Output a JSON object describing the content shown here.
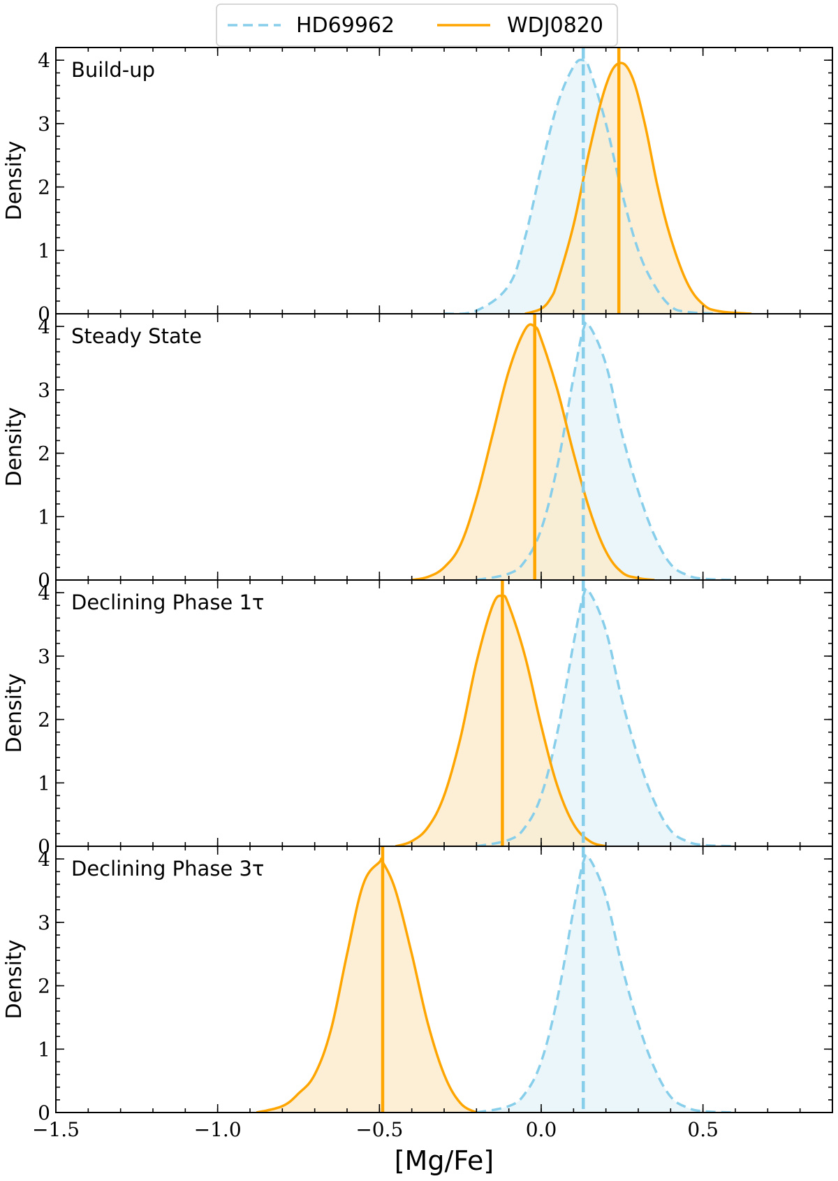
{
  "chart_data": {
    "type": "area",
    "xlabel": "[Mg/Fe]",
    "ylabel": "Density",
    "xlim": [
      -1.5,
      0.9
    ],
    "ylim": [
      0,
      4.2
    ],
    "xticks": [
      -1.5,
      -1.0,
      -0.5,
      0.0,
      0.5
    ],
    "xtick_labels": [
      "−1.5",
      "−1.0",
      "−0.5",
      "0.0",
      "0.5"
    ],
    "yticks": [
      0,
      1,
      2,
      3,
      4
    ],
    "ytick_labels": [
      "0",
      "1",
      "2",
      "3",
      "4"
    ],
    "legend": {
      "placement": "top-center",
      "entries": [
        {
          "label": "HD69962",
          "style": "dashed",
          "color": "#87ceeb"
        },
        {
          "label": "WDJ0820",
          "style": "solid",
          "color": "#ffa500"
        }
      ]
    },
    "colors": {
      "HD69962_line": "#87ceeb",
      "HD69962_fill": "#e4f3fa",
      "WDJ0820_line": "#ffa500",
      "WDJ0820_fill": "#fce9c8"
    },
    "panels": [
      {
        "label": "Build-up",
        "series": [
          {
            "name": "HD69962",
            "peak": 4.0,
            "median": 0.13,
            "x": [
              -0.3,
              -0.2,
              -0.1,
              -0.05,
              0.0,
              0.05,
              0.1,
              0.13,
              0.15,
              0.2,
              0.25,
              0.3,
              0.35,
              0.4,
              0.45,
              0.55
            ],
            "y": [
              0.0,
              0.05,
              0.45,
              1.2,
              2.3,
              3.3,
              3.9,
              4.0,
              3.85,
              3.0,
              1.9,
              1.0,
              0.45,
              0.12,
              0.03,
              0.0
            ]
          },
          {
            "name": "WDJ0820",
            "peak": 3.95,
            "median": 0.24,
            "x": [
              -0.05,
              0.0,
              0.03,
              0.05,
              0.1,
              0.15,
              0.2,
              0.24,
              0.28,
              0.32,
              0.36,
              0.4,
              0.45,
              0.5,
              0.55,
              0.65
            ],
            "y": [
              0.0,
              0.08,
              0.25,
              0.5,
              1.4,
              2.6,
              3.6,
              3.95,
              3.75,
              3.0,
              2.0,
              1.2,
              0.5,
              0.15,
              0.04,
              0.0
            ]
          }
        ]
      },
      {
        "label": "Steady State",
        "series": [
          {
            "name": "HD69962",
            "peak": 4.0,
            "median": 0.13,
            "x": [
              -0.2,
              -0.1,
              -0.05,
              0.0,
              0.05,
              0.1,
              0.13,
              0.15,
              0.2,
              0.25,
              0.3,
              0.35,
              0.4,
              0.45,
              0.5,
              0.6
            ],
            "y": [
              0.0,
              0.1,
              0.3,
              0.8,
              1.8,
              3.2,
              3.95,
              4.0,
              3.4,
              2.3,
              1.4,
              0.7,
              0.25,
              0.08,
              0.02,
              0.0
            ]
          },
          {
            "name": "WDJ0820",
            "peak": 4.0,
            "median": -0.02,
            "x": [
              -0.4,
              -0.35,
              -0.3,
              -0.25,
              -0.2,
              -0.15,
              -0.1,
              -0.05,
              -0.02,
              0.0,
              0.05,
              0.1,
              0.15,
              0.2,
              0.25,
              0.3,
              0.35
            ],
            "y": [
              0.0,
              0.05,
              0.2,
              0.55,
              1.3,
              2.3,
              3.3,
              3.95,
              4.0,
              3.8,
              3.0,
              2.0,
              1.1,
              0.45,
              0.12,
              0.03,
              0.0
            ]
          }
        ]
      },
      {
        "label": "Declining Phase 1τ",
        "series": [
          {
            "name": "HD69962",
            "peak": 4.0,
            "median": 0.13,
            "x": [
              -0.2,
              -0.1,
              -0.05,
              0.0,
              0.05,
              0.1,
              0.13,
              0.15,
              0.2,
              0.25,
              0.3,
              0.35,
              0.4,
              0.45,
              0.5,
              0.6
            ],
            "y": [
              0.0,
              0.1,
              0.3,
              0.8,
              1.8,
              3.2,
              3.95,
              4.0,
              3.4,
              2.3,
              1.4,
              0.7,
              0.25,
              0.08,
              0.02,
              0.0
            ]
          },
          {
            "name": "WDJ0820",
            "peak": 3.95,
            "median": -0.12,
            "x": [
              -0.45,
              -0.4,
              -0.35,
              -0.3,
              -0.25,
              -0.2,
              -0.15,
              -0.12,
              -0.1,
              -0.05,
              0.0,
              0.05,
              0.1,
              0.15,
              0.2
            ],
            "y": [
              0.0,
              0.08,
              0.3,
              0.8,
              1.7,
              2.9,
              3.8,
              3.95,
              3.8,
              3.0,
              1.9,
              0.95,
              0.35,
              0.08,
              0.0
            ]
          }
        ]
      },
      {
        "label": "Declining Phase 3τ",
        "series": [
          {
            "name": "HD69962",
            "peak": 4.0,
            "median": 0.13,
            "x": [
              -0.2,
              -0.1,
              -0.05,
              0.0,
              0.05,
              0.1,
              0.13,
              0.15,
              0.2,
              0.25,
              0.3,
              0.35,
              0.4,
              0.45,
              0.5,
              0.6
            ],
            "y": [
              0.0,
              0.1,
              0.3,
              0.8,
              1.8,
              3.2,
              3.95,
              4.0,
              3.4,
              2.3,
              1.4,
              0.7,
              0.25,
              0.08,
              0.02,
              0.0
            ]
          },
          {
            "name": "WDJ0820",
            "peak": 3.95,
            "median": -0.49,
            "x": [
              -0.88,
              -0.8,
              -0.75,
              -0.7,
              -0.65,
              -0.6,
              -0.55,
              -0.5,
              -0.49,
              -0.45,
              -0.4,
              -0.35,
              -0.3,
              -0.25,
              -0.2
            ],
            "y": [
              0.0,
              0.1,
              0.3,
              0.6,
              1.3,
              2.5,
              3.6,
              3.95,
              3.95,
              3.5,
              2.5,
              1.4,
              0.6,
              0.15,
              0.0
            ]
          }
        ]
      }
    ]
  }
}
